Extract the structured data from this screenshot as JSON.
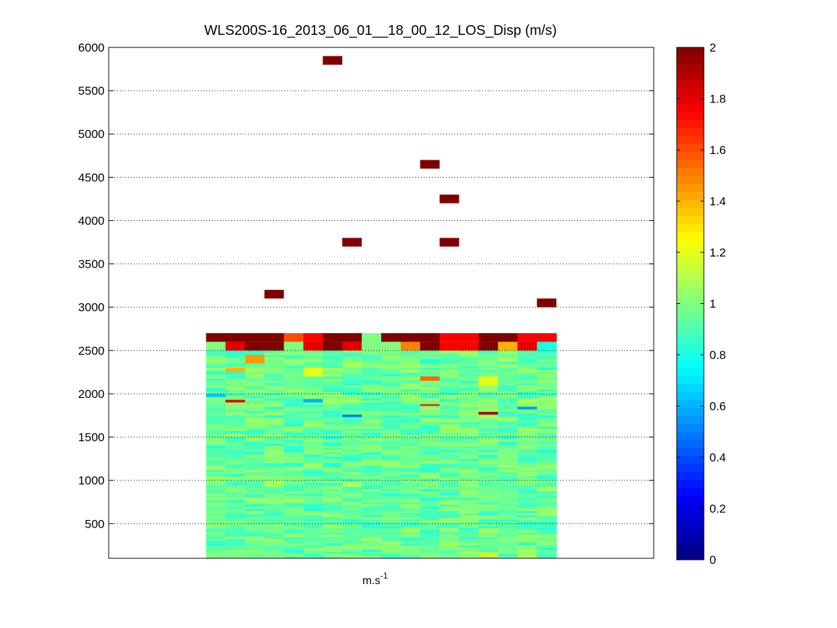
{
  "chart_data": {
    "type": "heatmap",
    "title": "WLS200S-16_2013_06_01__18_00_12_LOS_Disp (m/s)",
    "xlabel": "m.s",
    "xlabel_superscript": "-1",
    "ylabel": "",
    "ylim": [
      100,
      6000
    ],
    "yticks": [
      500,
      1000,
      1500,
      2000,
      2500,
      3000,
      3500,
      4000,
      4500,
      5000,
      5500,
      6000
    ],
    "grid": "horizontal dotted",
    "colormap": "jet",
    "clim": [
      0,
      2
    ],
    "colorbar_ticks": [
      0,
      0.2,
      0.4,
      0.6,
      0.8,
      1,
      1.2,
      1.4,
      1.6,
      1.8,
      2
    ],
    "colorbar_tick_labels": [
      "0",
      "0.2",
      "0.4",
      "0.6",
      "0.8",
      "1",
      "1.2",
      "1.4",
      "1.6",
      "1.8",
      "2"
    ],
    "columns": 18,
    "column_range": [
      5,
      23
    ],
    "x_extent": [
      0,
      28
    ],
    "dense_block": {
      "y_from": 100,
      "y_to": 2600,
      "cell_height": 50,
      "base_value": 0.95
    },
    "top_row": {
      "y_from": 2600,
      "y_to": 2700,
      "values": [
        2.0,
        2.0,
        2.0,
        2.0,
        1.6,
        1.75,
        2.0,
        2.0,
        1.0,
        2.0,
        2.0,
        2.0,
        1.75,
        1.75,
        2.0,
        2.0,
        1.75,
        1.75
      ]
    },
    "row_2550": {
      "y_from": 2500,
      "y_to": 2600,
      "values": [
        1.0,
        1.8,
        2.0,
        2.0,
        1.0,
        1.8,
        2.0,
        1.8,
        1.0,
        1.0,
        1.5,
        2.0,
        1.75,
        1.75,
        2.0,
        1.4,
        1.8,
        0.8
      ]
    },
    "notable_cells": [
      {
        "col": 2,
        "y_from": 2350,
        "y_to": 2450,
        "value": 1.45
      },
      {
        "col": 1,
        "y_from": 2250,
        "y_to": 2300,
        "value": 1.4
      },
      {
        "col": 11,
        "y_from": 2150,
        "y_to": 2200,
        "value": 1.55
      },
      {
        "col": 1,
        "y_from": 1900,
        "y_to": 1930,
        "value": 1.8
      },
      {
        "col": 0,
        "y_from": 1960,
        "y_to": 2000,
        "value": 0.65
      },
      {
        "col": 14,
        "y_from": 1760,
        "y_to": 1790,
        "value": 1.9
      },
      {
        "col": 7,
        "y_from": 1730,
        "y_to": 1760,
        "value": 0.5
      },
      {
        "col": 16,
        "y_from": 1820,
        "y_to": 1850,
        "value": 0.55
      },
      {
        "col": 5,
        "y_from": 1900,
        "y_to": 1940,
        "value": 0.6
      },
      {
        "col": 11,
        "y_from": 1860,
        "y_to": 1880,
        "value": 1.7
      },
      {
        "col": 14,
        "y_from": 2100,
        "y_to": 2200,
        "value": 1.2
      },
      {
        "col": 5,
        "y_from": 2200,
        "y_to": 2300,
        "value": 1.2
      },
      {
        "col": 14,
        "y_from": 120,
        "y_to": 160,
        "value": 1.3
      }
    ],
    "outliers": [
      {
        "col": 6,
        "y": 5850,
        "value": 2.0
      },
      {
        "col": 11,
        "y": 4650,
        "value": 2.0
      },
      {
        "col": 12,
        "y": 4250,
        "value": 2.0
      },
      {
        "col": 7,
        "y": 3750,
        "value": 2.0
      },
      {
        "col": 12,
        "y": 3750,
        "value": 2.0
      },
      {
        "col": 3,
        "y": 3150,
        "value": 2.0
      },
      {
        "col": 17,
        "y": 3050,
        "value": 2.0
      }
    ]
  }
}
